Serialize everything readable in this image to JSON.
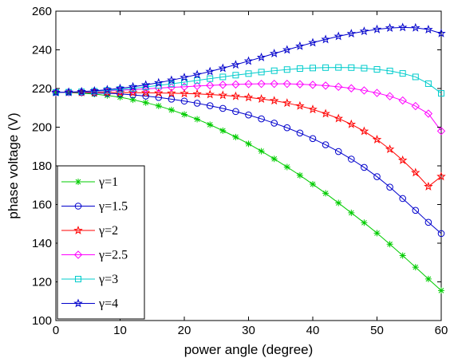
{
  "chart_data": {
    "type": "line",
    "title": "",
    "xlabel": "power angle (degree)",
    "ylabel": "phase voltage (V)",
    "xlim": [
      0,
      60
    ],
    "ylim": [
      100,
      260
    ],
    "xticks": [
      0,
      10,
      20,
      30,
      40,
      50,
      60
    ],
    "yticks": [
      100,
      120,
      140,
      160,
      180,
      200,
      220,
      240,
      260
    ],
    "grid": false,
    "legend_position": "bottom-left",
    "x": [
      0,
      2,
      4,
      6,
      8,
      10,
      12,
      14,
      16,
      18,
      20,
      22,
      24,
      26,
      28,
      30,
      32,
      34,
      36,
      38,
      40,
      42,
      44,
      46,
      48,
      50,
      52,
      54,
      56,
      58,
      60
    ],
    "series": [
      {
        "name": "γ=1",
        "color": "#00cc00",
        "marker": "asterisk",
        "values": [
          218,
          217.9,
          217.6,
          217.1,
          216.4,
          215.5,
          214.2,
          212.7,
          211,
          208.9,
          206.6,
          204.1,
          201.3,
          198.2,
          194.9,
          191.4,
          187.6,
          183.6,
          179.4,
          175.1,
          170.5,
          165.8,
          160.8,
          155.7,
          150.6,
          145.2,
          139.5,
          133.6,
          127.6,
          121.5,
          115.5
        ]
      },
      {
        "name": "γ=1.5",
        "color": "#0000cc",
        "marker": "circle",
        "values": [
          218,
          218,
          217.9,
          217.7,
          217.5,
          217.2,
          216.7,
          216.1,
          215.4,
          214.5,
          213.5,
          212.4,
          211.1,
          209.7,
          208.1,
          206.3,
          204.3,
          202.1,
          199.7,
          197,
          194.1,
          190.9,
          187.4,
          183.5,
          179.2,
          174.4,
          169,
          163.1,
          157,
          150.8,
          145
        ]
      },
      {
        "name": "γ=2",
        "color": "#ff0000",
        "marker": "star",
        "values": [
          218,
          218,
          218,
          218,
          218,
          217.9,
          217.9,
          217.8,
          217.7,
          217.6,
          217.4,
          217.2,
          216.9,
          216.5,
          216,
          215.4,
          214.6,
          213.7,
          212.5,
          211,
          209.2,
          207,
          204.5,
          201.5,
          197.9,
          193.6,
          188.6,
          182.9,
          176.5,
          169.3,
          174.5
        ]
      },
      {
        "name": "γ=2.5",
        "color": "#ff00ff",
        "marker": "diamond",
        "values": [
          218,
          218.1,
          218.3,
          218.5,
          218.8,
          219.1,
          219.4,
          219.8,
          220.2,
          220.6,
          220.9,
          221.3,
          221.6,
          221.9,
          222.1,
          222.3,
          222.4,
          222.4,
          222.4,
          222.2,
          221.9,
          221.5,
          220.9,
          220.1,
          219,
          217.7,
          216,
          213.8,
          210.9,
          207,
          198
        ]
      },
      {
        "name": "γ=3",
        "color": "#00cccc",
        "marker": "square",
        "values": [
          218,
          218.1,
          218.3,
          218.6,
          219,
          219.5,
          220.1,
          220.8,
          221.6,
          222.4,
          223.3,
          224.2,
          225.1,
          226,
          226.9,
          227.7,
          228.5,
          229.2,
          229.8,
          230.3,
          230.6,
          230.8,
          230.9,
          230.8,
          230.5,
          229.9,
          229.1,
          227.8,
          226,
          222.5,
          217.5
        ]
      },
      {
        "name": "γ=4",
        "color": "#0000cc",
        "marker": "star",
        "values": [
          218,
          218.1,
          218.4,
          218.8,
          219.4,
          220.1,
          220.9,
          221.9,
          223,
          224.3,
          225.7,
          227.2,
          228.8,
          230.5,
          232.3,
          234.2,
          236.1,
          238.1,
          240,
          241.9,
          243.7,
          245.4,
          247,
          248.4,
          249.6,
          250.6,
          251.3,
          251.6,
          251.4,
          250.5,
          248.5
        ]
      }
    ]
  }
}
